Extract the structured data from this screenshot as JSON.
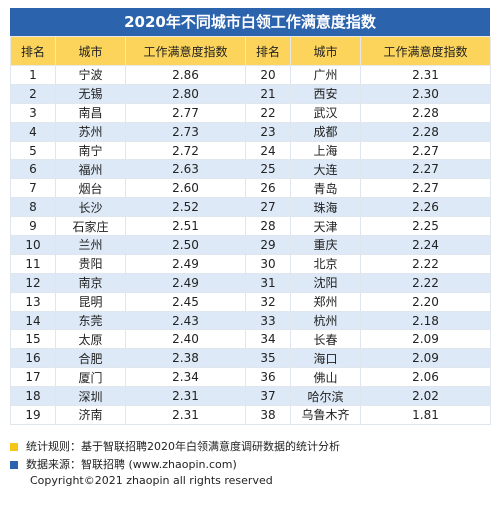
{
  "header": {
    "title": "2020年不同城市白领工作满意度指数"
  },
  "table": {
    "columns": [
      "排名",
      "城市",
      "工作满意度指数",
      "排名",
      "城市",
      "工作满意度指数"
    ],
    "rows": [
      [
        1,
        "宁波",
        "2.86",
        20,
        "广州",
        "2.31"
      ],
      [
        2,
        "无锡",
        "2.80",
        21,
        "西安",
        "2.30"
      ],
      [
        3,
        "南昌",
        "2.77",
        22,
        "武汉",
        "2.28"
      ],
      [
        4,
        "苏州",
        "2.73",
        23,
        "成都",
        "2.28"
      ],
      [
        5,
        "南宁",
        "2.72",
        24,
        "上海",
        "2.27"
      ],
      [
        6,
        "福州",
        "2.63",
        25,
        "大连",
        "2.27"
      ],
      [
        7,
        "烟台",
        "2.60",
        26,
        "青岛",
        "2.27"
      ],
      [
        8,
        "长沙",
        "2.52",
        27,
        "珠海",
        "2.26"
      ],
      [
        9,
        "石家庄",
        "2.51",
        28,
        "天津",
        "2.25"
      ],
      [
        10,
        "兰州",
        "2.50",
        29,
        "重庆",
        "2.24"
      ],
      [
        11,
        "贵阳",
        "2.49",
        30,
        "北京",
        "2.22"
      ],
      [
        12,
        "南京",
        "2.49",
        31,
        "沈阳",
        "2.22"
      ],
      [
        13,
        "昆明",
        "2.45",
        32,
        "郑州",
        "2.20"
      ],
      [
        14,
        "东莞",
        "2.43",
        33,
        "杭州",
        "2.18"
      ],
      [
        15,
        "太原",
        "2.40",
        34,
        "长春",
        "2.09"
      ],
      [
        16,
        "合肥",
        "2.38",
        35,
        "海口",
        "2.09"
      ],
      [
        17,
        "厦门",
        "2.34",
        36,
        "佛山",
        "2.06"
      ],
      [
        18,
        "深圳",
        "2.31",
        37,
        "哈尔滨",
        "2.02"
      ],
      [
        19,
        "济南",
        "2.31",
        38,
        "乌鲁木齐",
        "1.81"
      ]
    ]
  },
  "notes": [
    "统计规则：基于智联招聘2020年白领满意度调研数据的统计分析",
    "数据来源：智联招聘 (www.zhaopin.com)"
  ],
  "copyright": "Copyright©2021 zhaopin all rights reserved"
}
